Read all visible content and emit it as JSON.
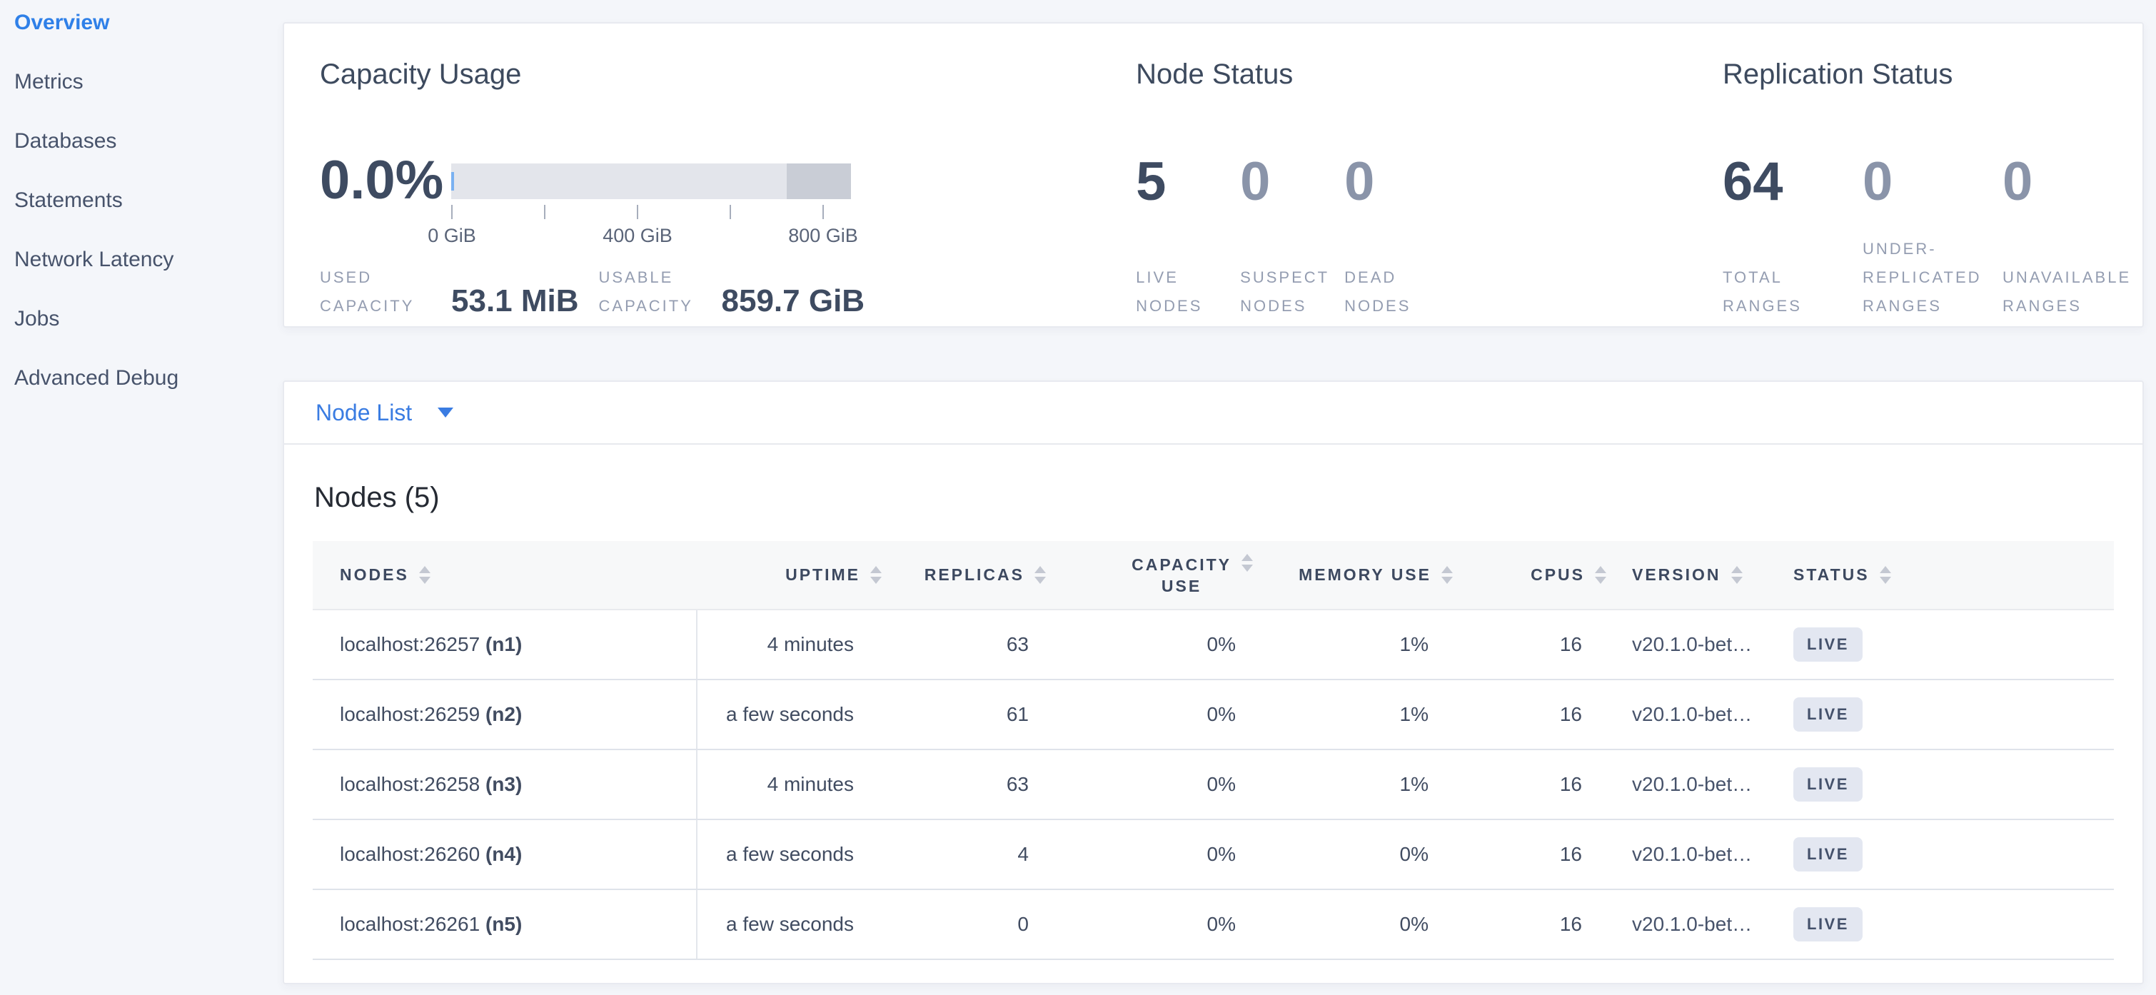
{
  "sidebar": {
    "items": [
      {
        "label": "Overview"
      },
      {
        "label": "Metrics"
      },
      {
        "label": "Databases"
      },
      {
        "label": "Statements"
      },
      {
        "label": "Network Latency"
      },
      {
        "label": "Jobs"
      },
      {
        "label": "Advanced Debug"
      }
    ]
  },
  "capacity": {
    "title": "Capacity Usage",
    "percent": "0.0%",
    "bar": {
      "used_pct": 0.7,
      "other_pct": 16
    },
    "axis_ticks": [
      "0 GiB",
      "400 GiB",
      "800 GiB"
    ],
    "used": {
      "line1": "USED",
      "line2": "CAPACITY",
      "value": "53.1 MiB"
    },
    "usable": {
      "line1": "USABLE",
      "line2": "CAPACITY",
      "value": "859.7 GiB"
    }
  },
  "node_status": {
    "title": "Node Status",
    "stats": [
      {
        "value": "5",
        "lines": [
          "LIVE",
          "NODES"
        ]
      },
      {
        "value": "0",
        "lines": [
          "SUSPECT",
          "NODES"
        ]
      },
      {
        "value": "0",
        "lines": [
          "DEAD",
          "NODES"
        ]
      }
    ]
  },
  "replication": {
    "title": "Replication Status",
    "stats": [
      {
        "value": "64",
        "lines": [
          "TOTAL",
          "RANGES"
        ]
      },
      {
        "value": "0",
        "lines": [
          "UNDER-",
          "REPLICATED",
          "RANGES"
        ]
      },
      {
        "value": "0",
        "lines": [
          "UNAVAILABLE",
          "RANGES"
        ]
      }
    ]
  },
  "subnav": {
    "node_list_label": "Node List"
  },
  "nodes_table": {
    "title": "Nodes (5)",
    "columns": [
      {
        "label": "NODES"
      },
      {
        "label": "UPTIME"
      },
      {
        "label": "REPLICAS"
      },
      {
        "label": "CAPACITY USE",
        "lines": [
          "CAPACITY",
          "USE"
        ]
      },
      {
        "label": "MEMORY USE"
      },
      {
        "label": "CPUS"
      },
      {
        "label": "VERSION"
      },
      {
        "label": "STATUS"
      }
    ],
    "rows": [
      {
        "address": "localhost:26257",
        "node_id": "(n1)",
        "uptime": "4 minutes",
        "replicas": "63",
        "capacity_use": "0%",
        "memory_use": "1%",
        "cpus": "16",
        "version": "v20.1.0-bet…",
        "status": "LIVE"
      },
      {
        "address": "localhost:26259",
        "node_id": "(n2)",
        "uptime": "a few seconds",
        "replicas": "61",
        "capacity_use": "0%",
        "memory_use": "1%",
        "cpus": "16",
        "version": "v20.1.0-bet…",
        "status": "LIVE"
      },
      {
        "address": "localhost:26258",
        "node_id": "(n3)",
        "uptime": "4 minutes",
        "replicas": "63",
        "capacity_use": "0%",
        "memory_use": "1%",
        "cpus": "16",
        "version": "v20.1.0-bet…",
        "status": "LIVE"
      },
      {
        "address": "localhost:26260",
        "node_id": "(n4)",
        "uptime": "a few seconds",
        "replicas": "4",
        "capacity_use": "0%",
        "memory_use": "0%",
        "cpus": "16",
        "version": "v20.1.0-bet…",
        "status": "LIVE"
      },
      {
        "address": "localhost:26261",
        "node_id": "(n5)",
        "uptime": "a few seconds",
        "replicas": "0",
        "capacity_use": "0%",
        "memory_use": "0%",
        "cpus": "16",
        "version": "v20.1.0-bet…",
        "status": "LIVE"
      }
    ]
  },
  "colors": {
    "accent_blue": "#2f80e8",
    "link_blue": "#3a7ce2",
    "badge_bg": "#e3e7f1",
    "badge_text": "#44516b",
    "bar_track": "#e3e5eb",
    "bar_other": "#c9cdd6",
    "bar_used": "#7ab1f1"
  }
}
